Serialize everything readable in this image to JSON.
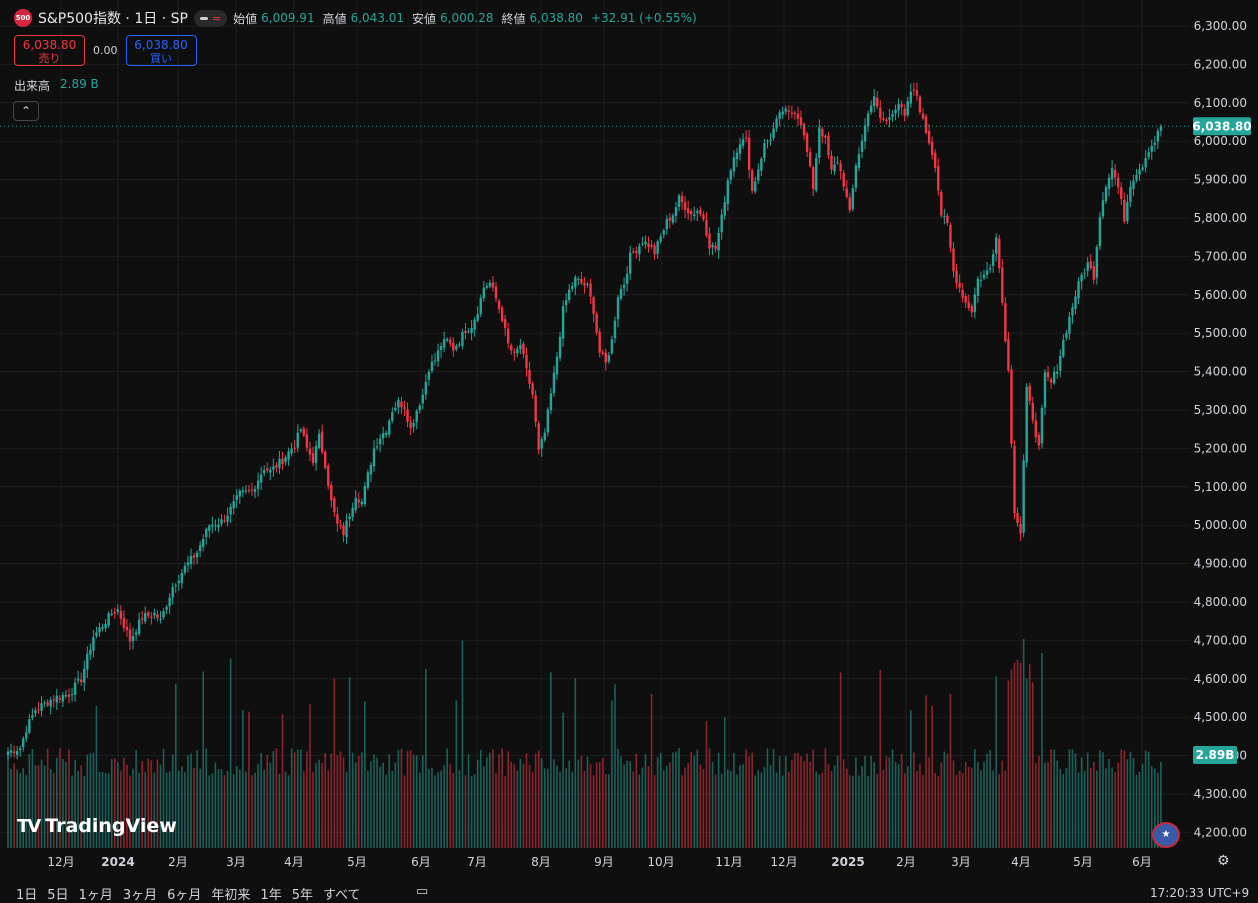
{
  "header": {
    "logo_text": "500",
    "symbol_title": "S&P500指数 · 1日 · SP",
    "ohlc": [
      {
        "label": "始値",
        "value": "6,009.91"
      },
      {
        "label": "高値",
        "value": "6,043.01"
      },
      {
        "label": "安値",
        "value": "6,000.28"
      },
      {
        "label": "終値",
        "value": "6,038.80"
      }
    ],
    "change": "+32.91 (+0.55%)"
  },
  "trade": {
    "sell_price": "6,038.80",
    "sell_label": "売り",
    "spread": "0.00",
    "buy_price": "6,038.80",
    "buy_label": "買い"
  },
  "volume_legend": {
    "label": "出来高",
    "value": "2.89 B"
  },
  "collapse_icon": "chevron-up-icon",
  "chart_data": {
    "type": "candlestick",
    "title": "S&P500指数 · 1日 · SP",
    "y_axis_ticks": [
      "6,300.00",
      "6,200.00",
      "6,100.00",
      "6,000.00",
      "5,900.00",
      "5,800.00",
      "5,700.00",
      "5,600.00",
      "5,500.00",
      "5,400.00",
      "5,300.00",
      "5,200.00",
      "5,100.00",
      "5,000.00",
      "4,900.00",
      "4,800.00",
      "4,700.00",
      "4,600.00",
      "4,500.00",
      "4,400.00",
      "4,300.00",
      "4,200.00"
    ],
    "ylim": [
      4200,
      6300
    ],
    "x_axis_ticks": [
      "12月",
      "2024",
      "2月",
      "3月",
      "4月",
      "5月",
      "6月",
      "7月",
      "8月",
      "9月",
      "10月",
      "11月",
      "12月",
      "2025",
      "2月",
      "3月",
      "4月",
      "5月",
      "6月"
    ],
    "bold_ticks": [
      "2024",
      "2025"
    ],
    "last_price_label": "6,038.80",
    "volume_label": "2.89B",
    "close_anchors": [
      [
        0,
        4410
      ],
      [
        4,
        4420
      ],
      [
        6,
        4470
      ],
      [
        9,
        4520
      ],
      [
        15,
        4550
      ],
      [
        20,
        4560
      ],
      [
        24,
        4600
      ],
      [
        28,
        4710
      ],
      [
        34,
        4770
      ],
      [
        36,
        4780
      ],
      [
        40,
        4700
      ],
      [
        44,
        4760
      ],
      [
        48,
        4770
      ],
      [
        50,
        4750
      ],
      [
        54,
        4840
      ],
      [
        58,
        4890
      ],
      [
        62,
        4930
      ],
      [
        66,
        5000
      ],
      [
        70,
        5010
      ],
      [
        72,
        5030
      ],
      [
        76,
        5080
      ],
      [
        80,
        5090
      ],
      [
        84,
        5150
      ],
      [
        86,
        5140
      ],
      [
        90,
        5170
      ],
      [
        94,
        5210
      ],
      [
        96,
        5250
      ],
      [
        98,
        5200
      ],
      [
        100,
        5170
      ],
      [
        102,
        5230
      ],
      [
        104,
        5160
      ],
      [
        106,
        5060
      ],
      [
        108,
        5000
      ],
      [
        110,
        4980
      ],
      [
        112,
        5030
      ],
      [
        114,
        5080
      ],
      [
        116,
        5060
      ],
      [
        118,
        5130
      ],
      [
        120,
        5200
      ],
      [
        122,
        5230
      ],
      [
        124,
        5250
      ],
      [
        126,
        5300
      ],
      [
        128,
        5320
      ],
      [
        130,
        5310
      ],
      [
        132,
        5250
      ],
      [
        134,
        5300
      ],
      [
        136,
        5340
      ],
      [
        138,
        5410
      ],
      [
        140,
        5430
      ],
      [
        142,
        5470
      ],
      [
        144,
        5480
      ],
      [
        146,
        5460
      ],
      [
        148,
        5480
      ],
      [
        150,
        5510
      ],
      [
        152,
        5520
      ],
      [
        154,
        5560
      ],
      [
        156,
        5620
      ],
      [
        158,
        5630
      ],
      [
        160,
        5590
      ],
      [
        162,
        5540
      ],
      [
        164,
        5470
      ],
      [
        166,
        5440
      ],
      [
        168,
        5470
      ],
      [
        170,
        5400
      ],
      [
        172,
        5340
      ],
      [
        174,
        5190
      ],
      [
        176,
        5240
      ],
      [
        178,
        5340
      ],
      [
        180,
        5440
      ],
      [
        182,
        5560
      ],
      [
        184,
        5610
      ],
      [
        186,
        5640
      ],
      [
        188,
        5630
      ],
      [
        190,
        5620
      ],
      [
        192,
        5560
      ],
      [
        194,
        5450
      ],
      [
        196,
        5420
      ],
      [
        198,
        5480
      ],
      [
        200,
        5600
      ],
      [
        202,
        5630
      ],
      [
        204,
        5700
      ],
      [
        206,
        5720
      ],
      [
        208,
        5740
      ],
      [
        210,
        5730
      ],
      [
        212,
        5710
      ],
      [
        214,
        5750
      ],
      [
        216,
        5790
      ],
      [
        218,
        5810
      ],
      [
        220,
        5850
      ],
      [
        222,
        5830
      ],
      [
        224,
        5810
      ],
      [
        226,
        5820
      ],
      [
        228,
        5800
      ],
      [
        230,
        5730
      ],
      [
        232,
        5720
      ],
      [
        234,
        5800
      ],
      [
        236,
        5900
      ],
      [
        238,
        5960
      ],
      [
        240,
        6000
      ],
      [
        242,
        6000
      ],
      [
        244,
        5870
      ],
      [
        246,
        5930
      ],
      [
        248,
        5990
      ],
      [
        250,
        6010
      ],
      [
        252,
        6050
      ],
      [
        254,
        6080
      ],
      [
        256,
        6070
      ],
      [
        258,
        6080
      ],
      [
        260,
        6050
      ],
      [
        262,
        5970
      ],
      [
        264,
        5880
      ],
      [
        266,
        6040
      ],
      [
        268,
        6000
      ],
      [
        270,
        5920
      ],
      [
        272,
        5950
      ],
      [
        274,
        5890
      ],
      [
        276,
        5810
      ],
      [
        278,
        5940
      ],
      [
        280,
        6000
      ],
      [
        282,
        6080
      ],
      [
        284,
        6110
      ],
      [
        286,
        6060
      ],
      [
        288,
        6050
      ],
      [
        290,
        6080
      ],
      [
        292,
        6100
      ],
      [
        294,
        6060
      ],
      [
        296,
        6130
      ],
      [
        298,
        6120
      ],
      [
        300,
        6050
      ],
      [
        302,
        6000
      ],
      [
        304,
        5940
      ],
      [
        306,
        5810
      ],
      [
        308,
        5780
      ],
      [
        310,
        5660
      ],
      [
        312,
        5620
      ],
      [
        314,
        5580
      ],
      [
        316,
        5560
      ],
      [
        318,
        5640
      ],
      [
        320,
        5650
      ],
      [
        322,
        5670
      ],
      [
        324,
        5760
      ],
      [
        326,
        5580
      ],
      [
        328,
        5400
      ],
      [
        330,
        5040
      ],
      [
        332,
        4980
      ],
      [
        334,
        5350
      ],
      [
        336,
        5280
      ],
      [
        338,
        5200
      ],
      [
        340,
        5390
      ],
      [
        342,
        5370
      ],
      [
        344,
        5410
      ],
      [
        346,
        5480
      ],
      [
        348,
        5540
      ],
      [
        350,
        5600
      ],
      [
        352,
        5650
      ],
      [
        354,
        5680
      ],
      [
        356,
        5650
      ],
      [
        358,
        5810
      ],
      [
        360,
        5890
      ],
      [
        362,
        5930
      ],
      [
        364,
        5880
      ],
      [
        366,
        5800
      ],
      [
        368,
        5890
      ],
      [
        370,
        5920
      ],
      [
        372,
        5940
      ],
      [
        374,
        5980
      ],
      [
        376,
        6000
      ],
      [
        378,
        6038.8
      ]
    ]
  },
  "watermark": {
    "mark": "TV",
    "name": "TradingView"
  },
  "flag_icon": "us-flag-icon",
  "settings_icon": "gear-icon",
  "range_tabs": [
    "1日",
    "5日",
    "1ヶ月",
    "3ヶ月",
    "6ヶ月",
    "年初来",
    "1年",
    "5年",
    "すべて"
  ],
  "calendar_icon": "calendar-icon",
  "clock": "17:20:33 UTC+9"
}
